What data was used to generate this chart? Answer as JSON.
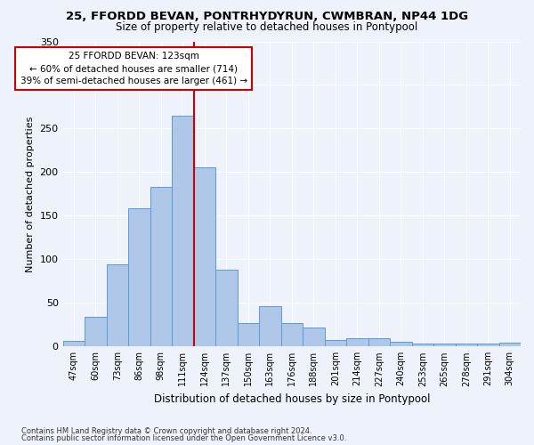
{
  "title": "25, FFORDD BEVAN, PONTRHYDYRUN, CWMBRAN, NP44 1DG",
  "subtitle": "Size of property relative to detached houses in Pontypool",
  "xlabel": "Distribution of detached houses by size in Pontypool",
  "ylabel": "Number of detached properties",
  "categories": [
    "47sqm",
    "60sqm",
    "73sqm",
    "86sqm",
    "98sqm",
    "111sqm",
    "124sqm",
    "137sqm",
    "150sqm",
    "163sqm",
    "176sqm",
    "188sqm",
    "201sqm",
    "214sqm",
    "227sqm",
    "240sqm",
    "253sqm",
    "265sqm",
    "278sqm",
    "291sqm",
    "304sqm"
  ],
  "bar_heights": [
    6,
    34,
    94,
    159,
    183,
    265,
    206,
    88,
    27,
    46,
    27,
    22,
    7,
    9,
    9,
    5,
    3,
    3,
    3,
    3,
    4
  ],
  "bar_color": "#aec6e8",
  "bar_edge_color": "#5b9bd5",
  "vline_x": 5.5,
  "vline_color": "#cc0000",
  "annotation_text": "25 FFORDD BEVAN: 123sqm\n← 60% of detached houses are smaller (714)\n39% of semi-detached houses are larger (461) →",
  "annotation_box_color": "#ffffff",
  "annotation_box_edge": "#cc0000",
  "ylim": [
    0,
    350
  ],
  "yticks": [
    0,
    50,
    100,
    150,
    200,
    250,
    300,
    350
  ],
  "footer_line1": "Contains HM Land Registry data © Crown copyright and database right 2024.",
  "footer_line2": "Contains public sector information licensed under the Open Government Licence v3.0.",
  "bg_color": "#eef2fb",
  "grid_color": "#ffffff"
}
